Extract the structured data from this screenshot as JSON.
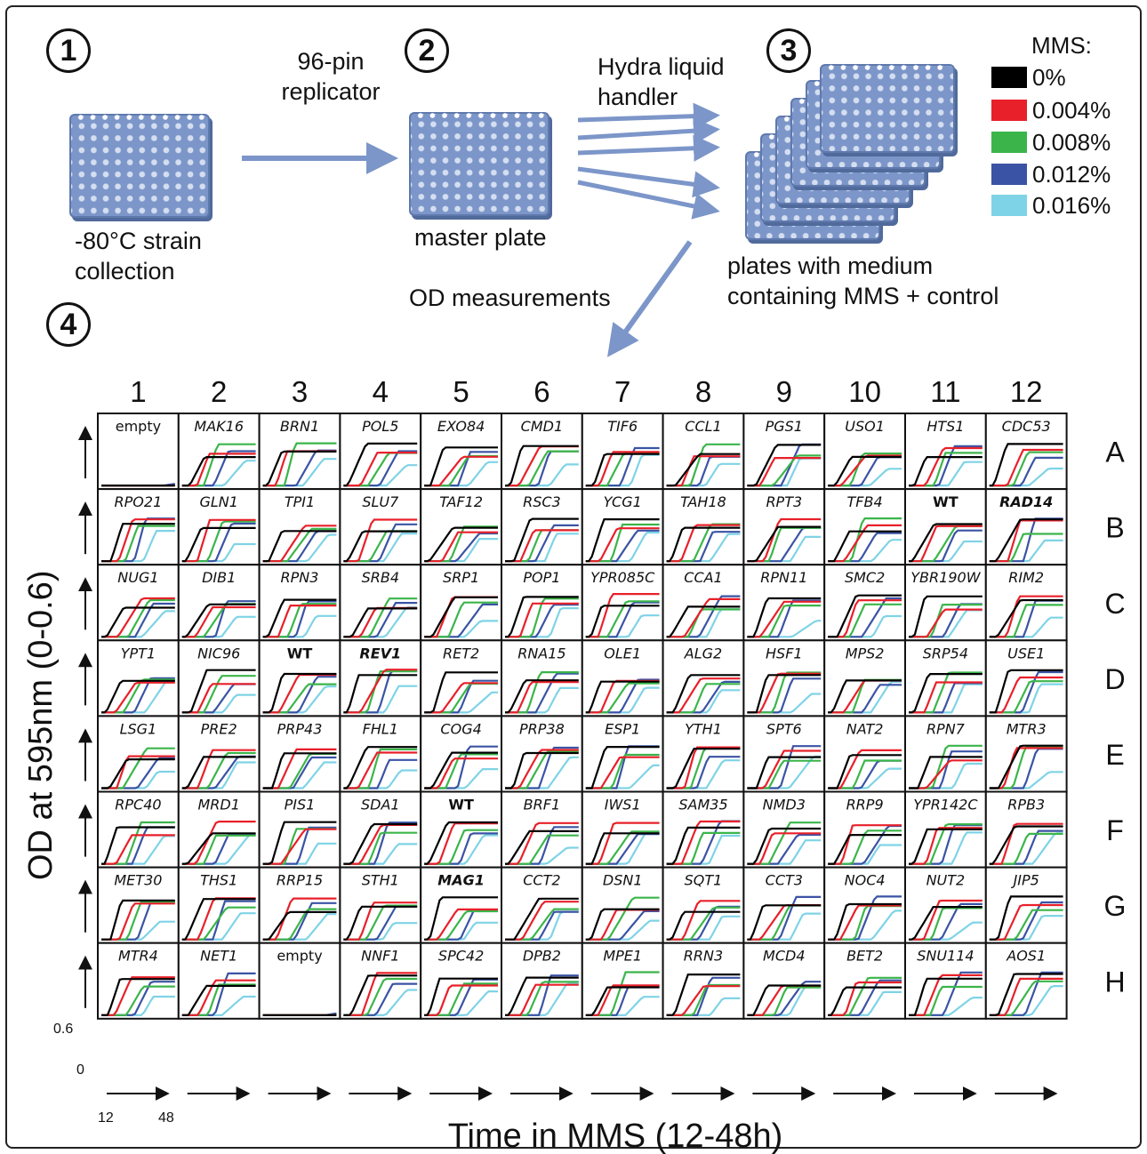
{
  "steps": [
    "1",
    "2",
    "3",
    "4"
  ],
  "labels": {
    "replicator_line1": "96-pin",
    "replicator_line2": "replicator",
    "strain_line1": "-80°C strain",
    "strain_line2": "collection",
    "master": "master plate",
    "hydra_line1": "Hydra liquid",
    "hydra_line2": "handler",
    "plates_line1": "plates with medium",
    "plates_line2": "containing MMS + control",
    "od": "OD measurements"
  },
  "legend": {
    "title": "MMS:",
    "items": [
      {
        "label": "0%",
        "color": "#000000"
      },
      {
        "label": "0.004%",
        "color": "#e8202a"
      },
      {
        "label": "0.008%",
        "color": "#3bb54a"
      },
      {
        "label": "0.012%",
        "color": "#3a53a4"
      },
      {
        "label": "0.016%",
        "color": "#7fd3e6"
      }
    ]
  },
  "grid": {
    "columns": [
      "1",
      "2",
      "3",
      "4",
      "5",
      "6",
      "7",
      "8",
      "9",
      "10",
      "11",
      "12"
    ],
    "rows": [
      "A",
      "B",
      "C",
      "D",
      "E",
      "F",
      "G",
      "H"
    ],
    "cells": [
      [
        "empty",
        "MAK16",
        "BRN1",
        "POL5",
        "EXO84",
        "CMD1",
        "TIF6",
        "CCL1",
        "PGS1",
        "USO1",
        "HTS1",
        "CDC53"
      ],
      [
        "RPO21",
        "GLN1",
        "TPI1",
        "SLU7",
        "TAF12",
        "RSC3",
        "YCG1",
        "TAH18",
        "RPT3",
        "TFB4",
        "WT",
        "RAD14"
      ],
      [
        "NUG1",
        "DIB1",
        "RPN3",
        "SRB4",
        "SRP1",
        "POP1",
        "YPR085C",
        "CCA1",
        "RPN11",
        "SMC2",
        "YBR190W",
        "RIM2"
      ],
      [
        "YPT1",
        "NIC96",
        "WT",
        "REV1",
        "RET2",
        "RNA15",
        "OLE1",
        "ALG2",
        "HSF1",
        "MPS2",
        "SRP54",
        "USE1"
      ],
      [
        "LSG1",
        "PRE2",
        "PRP43",
        "FHL1",
        "COG4",
        "PRP38",
        "ESP1",
        "YTH1",
        "SPT6",
        "NAT2",
        "RPN7",
        "MTR3"
      ],
      [
        "RPC40",
        "MRD1",
        "PIS1",
        "SDA1",
        "WT",
        "BRF1",
        "IWS1",
        "SAM35",
        "NMD3",
        "RRP9",
        "YPR142C",
        "RPB3"
      ],
      [
        "MET30",
        "THS1",
        "RRP15",
        "STH1",
        "MAG1",
        "CCT2",
        "DSN1",
        "SQT1",
        "CCT3",
        "NOC4",
        "NUT2",
        "JIP5"
      ],
      [
        "MTR4",
        "NET1",
        "empty",
        "NNF1",
        "SPC42",
        "DPB2",
        "MPE1",
        "RRN3",
        "MCD4",
        "BET2",
        "SNU114",
        "AOS1"
      ]
    ]
  },
  "axes": {
    "ylabel": "OD at 595nm (0-0.6)",
    "xlabel": "Time in MMS (12-48h)",
    "y_tick_top": "0.6",
    "y_tick_bottom": "0",
    "x_tick_left": "12",
    "x_tick_right": "48"
  }
}
